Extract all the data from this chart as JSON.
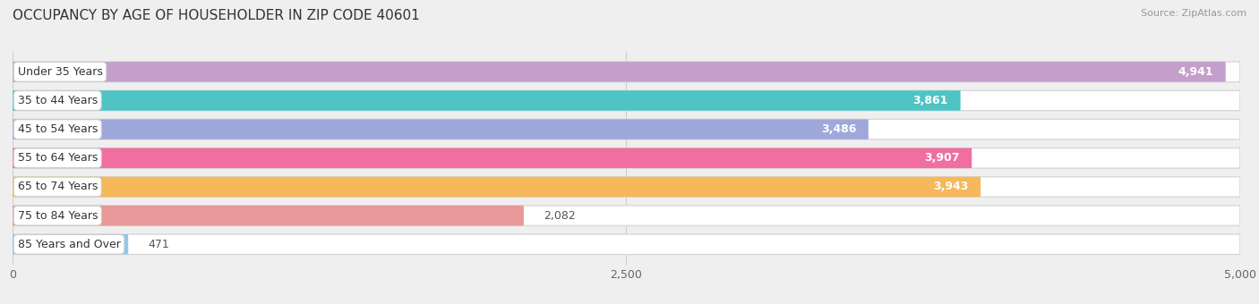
{
  "title": "OCCUPANCY BY AGE OF HOUSEHOLDER IN ZIP CODE 40601",
  "source": "Source: ZipAtlas.com",
  "categories": [
    "Under 35 Years",
    "35 to 44 Years",
    "45 to 54 Years",
    "55 to 64 Years",
    "65 to 74 Years",
    "75 to 84 Years",
    "85 Years and Over"
  ],
  "values": [
    4941,
    3861,
    3486,
    3907,
    3943,
    2082,
    471
  ],
  "bar_colors": [
    "#c49fcc",
    "#4fc4c4",
    "#9fa8da",
    "#f06fa0",
    "#f5b85a",
    "#e89898",
    "#90c8f0"
  ],
  "xlim": [
    0,
    5000
  ],
  "xticks": [
    0,
    2500,
    5000
  ],
  "background_color": "#efefef",
  "bar_bg_color": "#e8e8e8",
  "bar_border_color": "#d8d8d8",
  "title_fontsize": 11,
  "label_fontsize": 9,
  "value_fontsize": 9
}
